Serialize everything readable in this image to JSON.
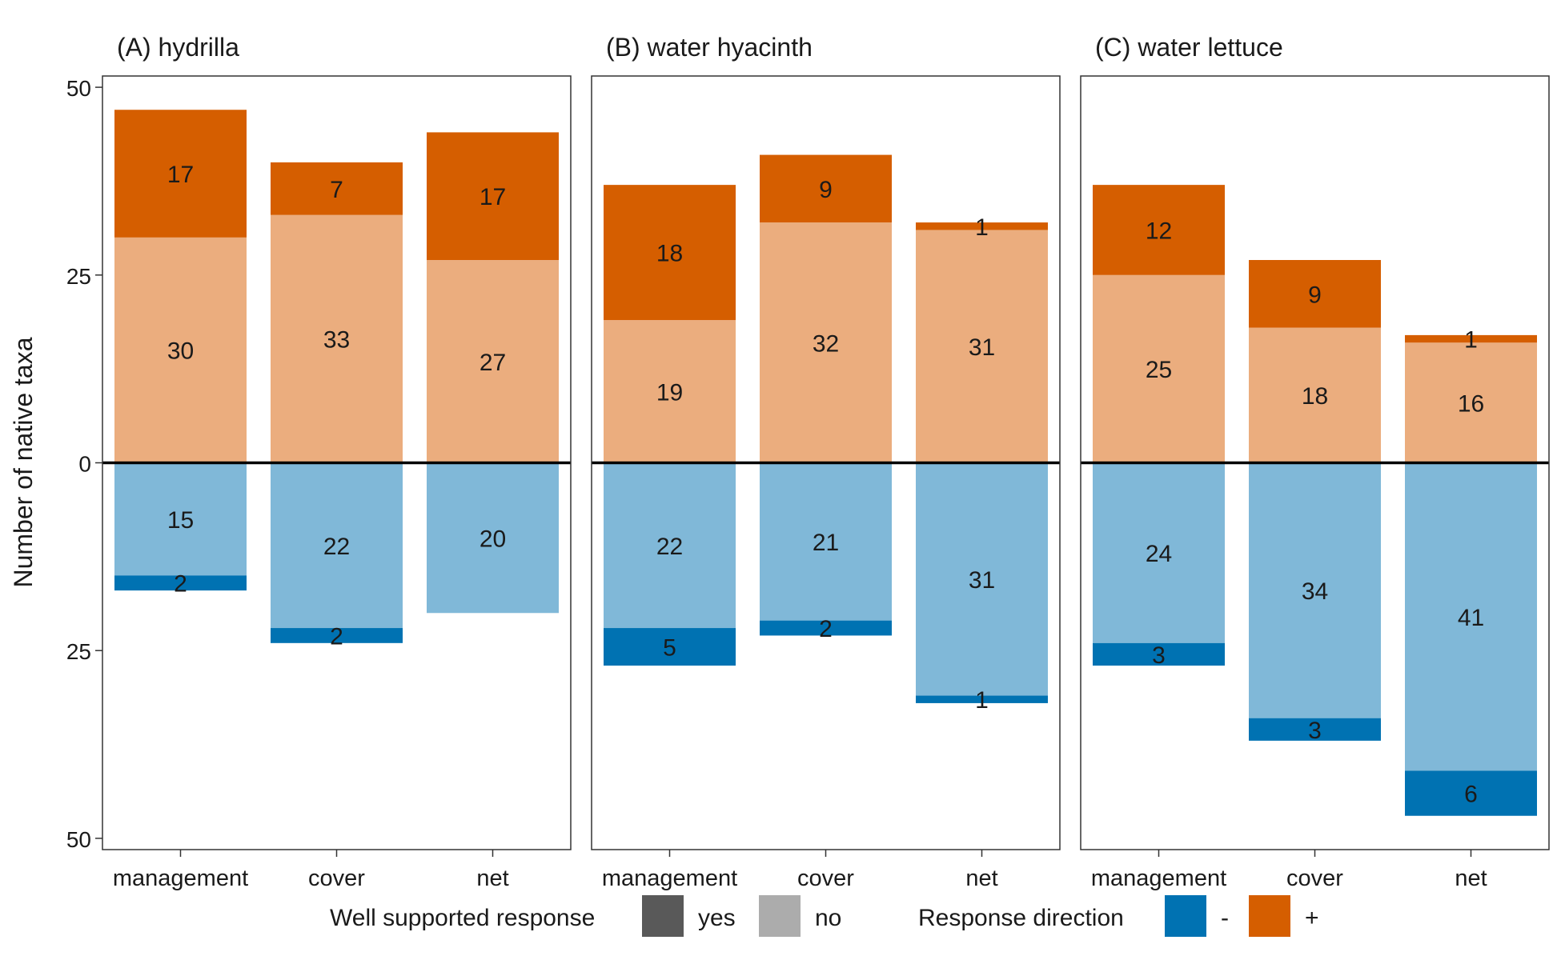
{
  "chart_data": {
    "type": "bar",
    "stacking": "diverging",
    "ylabel": "Number of native taxa",
    "ylim": [
      -50,
      50
    ],
    "yticks": [
      50,
      25,
      0,
      -25,
      -50
    ],
    "ytick_labels": [
      "50",
      "25",
      "0",
      "25",
      "50"
    ],
    "categories": [
      "management",
      "cover",
      "net"
    ],
    "colors": {
      "positive_yes": "#D55E00",
      "positive_no": "#EBAD7E",
      "negative_yes": "#0072B2",
      "negative_no": "#80B8D8",
      "legend_yes": "#595959",
      "legend_no": "#ACACAC"
    },
    "panels": [
      {
        "title": "(A) hydrilla",
        "positive_no": [
          30,
          33,
          27
        ],
        "positive_yes": [
          17,
          7,
          17
        ],
        "negative_no": [
          15,
          22,
          20
        ],
        "negative_yes": [
          2,
          2,
          0
        ]
      },
      {
        "title": "(B) water hyacinth",
        "positive_no": [
          19,
          32,
          31
        ],
        "positive_yes": [
          18,
          9,
          1
        ],
        "negative_no": [
          22,
          21,
          31
        ],
        "negative_yes": [
          5,
          2,
          1
        ]
      },
      {
        "title": "(C) water lettuce",
        "positive_no": [
          25,
          18,
          16
        ],
        "positive_yes": [
          12,
          9,
          1
        ],
        "negative_no": [
          24,
          34,
          41
        ],
        "negative_yes": [
          3,
          3,
          6
        ]
      }
    ],
    "legend": {
      "support_title": "Well supported response",
      "support_items": [
        "yes",
        "no"
      ],
      "direction_title": "Response direction",
      "direction_items": [
        "-",
        "+"
      ]
    },
    "grid": false,
    "legend_position": "bottom"
  }
}
